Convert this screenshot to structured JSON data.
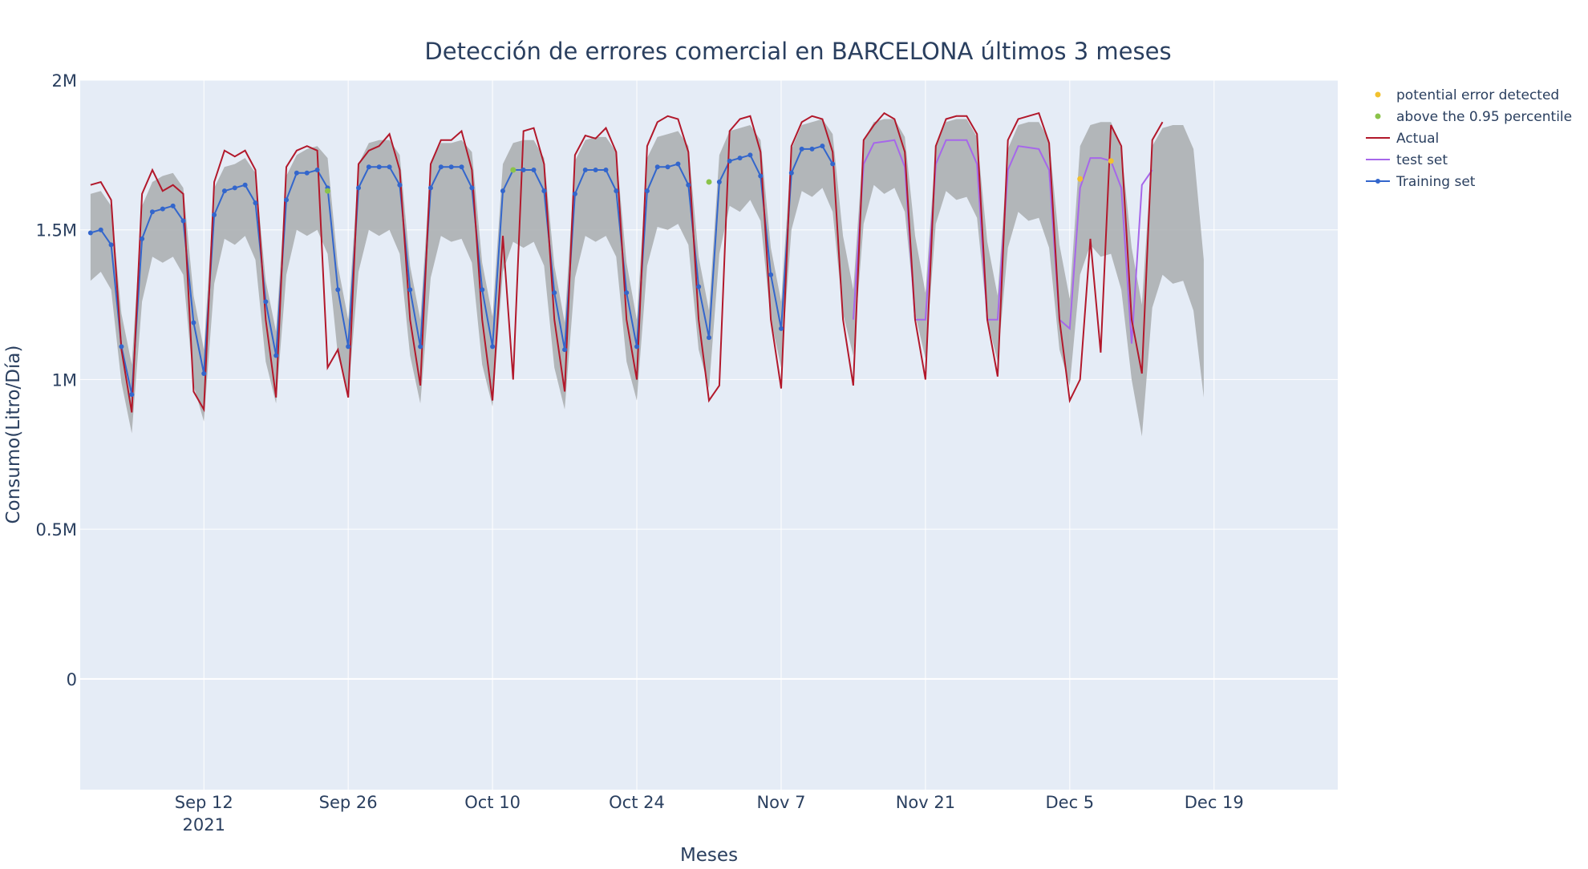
{
  "chart_data": {
    "type": "line",
    "title": "Detección de errores comercial en BARCELONA últimos 3 meses",
    "xlabel": "Meses",
    "ylabel": "Consumo(Litro/Día)",
    "x_start": "2021-09-01",
    "x_range": [
      "2021-08-31",
      "2021-12-31"
    ],
    "ylim": [
      -370000,
      2000000
    ],
    "x_ticks": [
      {
        "date": "2021-09-12",
        "label": "Sep 12",
        "sublabel": "2021"
      },
      {
        "date": "2021-09-26",
        "label": "Sep 26",
        "sublabel": ""
      },
      {
        "date": "2021-10-10",
        "label": "Oct 10",
        "sublabel": ""
      },
      {
        "date": "2021-10-24",
        "label": "Oct 24",
        "sublabel": ""
      },
      {
        "date": "2021-11-07",
        "label": "Nov 7",
        "sublabel": ""
      },
      {
        "date": "2021-11-21",
        "label": "Nov 21",
        "sublabel": ""
      },
      {
        "date": "2021-12-05",
        "label": "Dec 5",
        "sublabel": ""
      },
      {
        "date": "2021-12-19",
        "label": "Dec 19",
        "sublabel": ""
      }
    ],
    "y_ticks": [
      {
        "value": 0,
        "label": "0"
      },
      {
        "value": 500000,
        "label": "0.5M"
      },
      {
        "value": 1000000,
        "label": "1M"
      },
      {
        "value": 1500000,
        "label": "1.5M"
      },
      {
        "value": 2000000,
        "label": "2M"
      }
    ],
    "grid": true,
    "legend_position": "top-right",
    "colors": {
      "actual": "#b2182b",
      "test": "#a667ea",
      "training": "#3366cc",
      "band": "#a6a9ab",
      "potential_error": "#f2c12e",
      "above_percentile": "#8bc34a",
      "plot_bg": "#e5ecf6"
    },
    "legend": [
      {
        "key": "potential_error",
        "label": "potential error detected",
        "style": "marker"
      },
      {
        "key": "above_percentile",
        "label": "above the 0.95 percentile",
        "style": "marker"
      },
      {
        "key": "actual",
        "label": "Actual",
        "style": "line"
      },
      {
        "key": "test",
        "label": "test set",
        "style": "line"
      },
      {
        "key": "training",
        "label": "Training set",
        "style": "line-marker"
      }
    ],
    "actual": [
      1650000,
      1660000,
      1600000,
      1100000,
      890000,
      1620000,
      1700000,
      1630000,
      1650000,
      1620000,
      960000,
      900000,
      1660000,
      1765000,
      1745000,
      1765000,
      1700000,
      1200000,
      940000,
      1710000,
      1765000,
      1780000,
      1765000,
      1040000,
      1100000,
      940000,
      1720000,
      1765000,
      1780000,
      1820000,
      1700000,
      1200000,
      980000,
      1720000,
      1800000,
      1800000,
      1830000,
      1700000,
      1200000,
      930000,
      1480000,
      1000000,
      1830000,
      1840000,
      1720000,
      1200000,
      960000,
      1750000,
      1815000,
      1805000,
      1840000,
      1760000,
      1200000,
      1000000,
      1780000,
      1860000,
      1880000,
      1870000,
      1760000,
      1200000,
      930000,
      980000,
      1830000,
      1870000,
      1880000,
      1760000,
      1200000,
      970000,
      1780000,
      1860000,
      1880000,
      1870000,
      1760000,
      1200000,
      980000,
      1800000,
      1850000,
      1890000,
      1870000,
      1760000,
      1200000,
      1000000,
      1780000,
      1870000,
      1880000,
      1880000,
      1820000,
      1200000,
      1010000,
      1800000,
      1870000,
      1880000,
      1890000,
      1790000,
      1200000,
      930000,
      1000000,
      1470000,
      1090000,
      1850000,
      1780000,
      1200000,
      1020000,
      1800000,
      1860000
    ],
    "test_offset": 74,
    "test": [
      1200000,
      1720000,
      1790000,
      1795000,
      1800000,
      1710000,
      1200000,
      1200000,
      1720000,
      1800000,
      1800000,
      1800000,
      1720000,
      1200000,
      1200000,
      1700000,
      1780000,
      1775000,
      1770000,
      1700000,
      1200000,
      1170000,
      1640000,
      1740000,
      1740000,
      1730000,
      1640000,
      1120000,
      1650000,
      1700000
    ],
    "training_offset": 0,
    "training": [
      1490000,
      1500000,
      1450000,
      1110000,
      950000,
      1470000,
      1560000,
      1570000,
      1580000,
      1530000,
      1190000,
      1020000,
      1550000,
      1630000,
      1640000,
      1650000,
      1590000,
      1260000,
      1080000,
      1600000,
      1690000,
      1690000,
      1700000,
      1640000,
      1300000,
      1110000,
      1640000,
      1710000,
      1710000,
      1710000,
      1650000,
      1300000,
      1110000,
      1640000,
      1710000,
      1710000,
      1710000,
      1640000,
      1300000,
      1110000,
      1630000,
      1700000,
      1700000,
      1700000,
      1630000,
      1290000,
      1100000,
      1620000,
      1700000,
      1700000,
      1700000,
      1630000,
      1290000,
      1110000,
      1630000,
      1710000,
      1710000,
      1720000,
      1650000,
      1310000,
      1140000,
      1660000,
      1730000,
      1740000,
      1750000,
      1680000,
      1350000,
      1170000,
      1690000,
      1770000,
      1770000,
      1780000,
      1720000
    ],
    "band_upper": [
      1620000,
      1630000,
      1580000,
      1220000,
      1050000,
      1580000,
      1660000,
      1680000,
      1690000,
      1640000,
      1280000,
      1100000,
      1640000,
      1710000,
      1720000,
      1740000,
      1690000,
      1330000,
      1160000,
      1680000,
      1750000,
      1770000,
      1780000,
      1740000,
      1380000,
      1200000,
      1720000,
      1790000,
      1800000,
      1800000,
      1750000,
      1380000,
      1200000,
      1720000,
      1790000,
      1790000,
      1800000,
      1760000,
      1390000,
      1210000,
      1720000,
      1790000,
      1800000,
      1800000,
      1740000,
      1380000,
      1190000,
      1730000,
      1800000,
      1810000,
      1810000,
      1760000,
      1390000,
      1200000,
      1740000,
      1810000,
      1820000,
      1830000,
      1780000,
      1410000,
      1230000,
      1750000,
      1830000,
      1840000,
      1850000,
      1800000,
      1440000,
      1260000,
      1770000,
      1850000,
      1860000,
      1870000,
      1820000,
      1480000,
      1300000,
      1800000,
      1860000,
      1870000,
      1870000,
      1810000,
      1480000,
      1290000,
      1780000,
      1860000,
      1870000,
      1870000,
      1810000,
      1460000,
      1280000,
      1770000,
      1850000,
      1860000,
      1860000,
      1800000,
      1450000,
      1270000,
      1780000,
      1850000,
      1860000,
      1860000,
      1770000,
      1440000,
      1250000,
      1780000,
      1840000,
      1850000,
      1850000,
      1770000,
      1400000
    ],
    "band_lower": [
      1330000,
      1360000,
      1300000,
      990000,
      820000,
      1260000,
      1410000,
      1390000,
      1410000,
      1350000,
      980000,
      860000,
      1320000,
      1470000,
      1450000,
      1480000,
      1400000,
      1060000,
      920000,
      1350000,
      1500000,
      1480000,
      1500000,
      1420000,
      1080000,
      950000,
      1360000,
      1500000,
      1480000,
      1500000,
      1420000,
      1080000,
      920000,
      1340000,
      1480000,
      1460000,
      1470000,
      1390000,
      1050000,
      910000,
      1360000,
      1460000,
      1440000,
      1460000,
      1380000,
      1040000,
      900000,
      1340000,
      1480000,
      1460000,
      1480000,
      1410000,
      1060000,
      930000,
      1380000,
      1510000,
      1500000,
      1520000,
      1450000,
      1100000,
      970000,
      1420000,
      1580000,
      1560000,
      1600000,
      1530000,
      1200000,
      1040000,
      1500000,
      1630000,
      1610000,
      1640000,
      1560000,
      1220000,
      1080000,
      1520000,
      1650000,
      1620000,
      1640000,
      1560000,
      1220000,
      1070000,
      1520000,
      1630000,
      1600000,
      1610000,
      1540000,
      1200000,
      1060000,
      1440000,
      1560000,
      1530000,
      1540000,
      1440000,
      1100000,
      980000,
      1350000,
      1450000,
      1410000,
      1420000,
      1300000,
      1000000,
      810000,
      1240000,
      1350000,
      1320000,
      1330000,
      1230000,
      940000
    ],
    "above_percentile_points": [
      {
        "date": "2021-09-24",
        "value": 1630000
      },
      {
        "date": "2021-10-12",
        "value": 1700000
      },
      {
        "date": "2021-10-31",
        "value": 1660000
      }
    ],
    "potential_error_points": [
      {
        "date": "2021-12-06",
        "value": 1670000
      },
      {
        "date": "2021-12-09",
        "value": 1730000
      }
    ]
  }
}
